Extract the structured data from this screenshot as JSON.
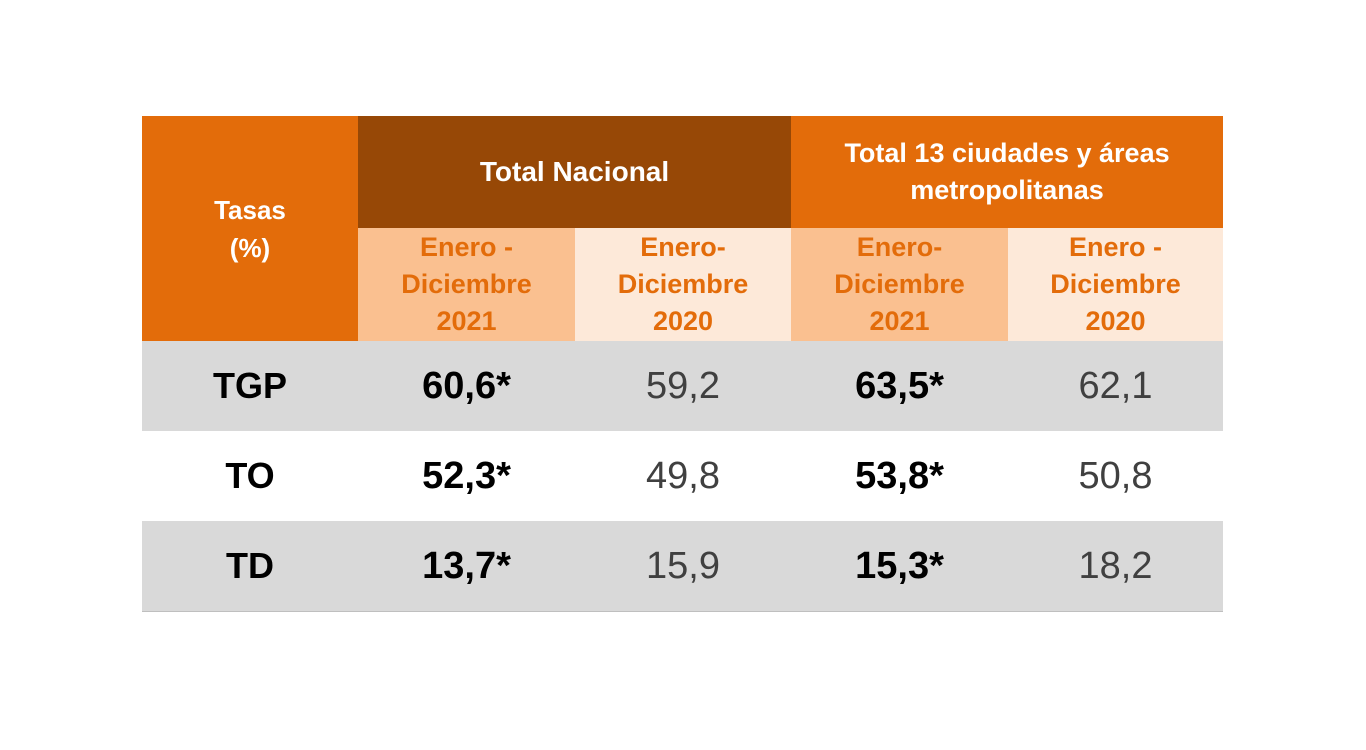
{
  "table": {
    "header": {
      "corner": "Tasas (%)",
      "groups": [
        "Total Nacional",
        "Total 13 ciudades y áreas metropolitanas"
      ],
      "periods": [
        "Enero - Diciembre 2021",
        "Enero-Diciembre 2020",
        "Enero-Diciembre 2021",
        "Enero - Diciembre 2020"
      ]
    },
    "rows": [
      [
        "TGP",
        "60,6*",
        "59,2",
        "63,5*",
        "62,1"
      ],
      [
        "TO",
        "52,3*",
        "49,8",
        "53,8*",
        "50,8"
      ],
      [
        "TD",
        "13,7*",
        "15,9",
        "15,3*",
        "18,2"
      ]
    ]
  }
}
